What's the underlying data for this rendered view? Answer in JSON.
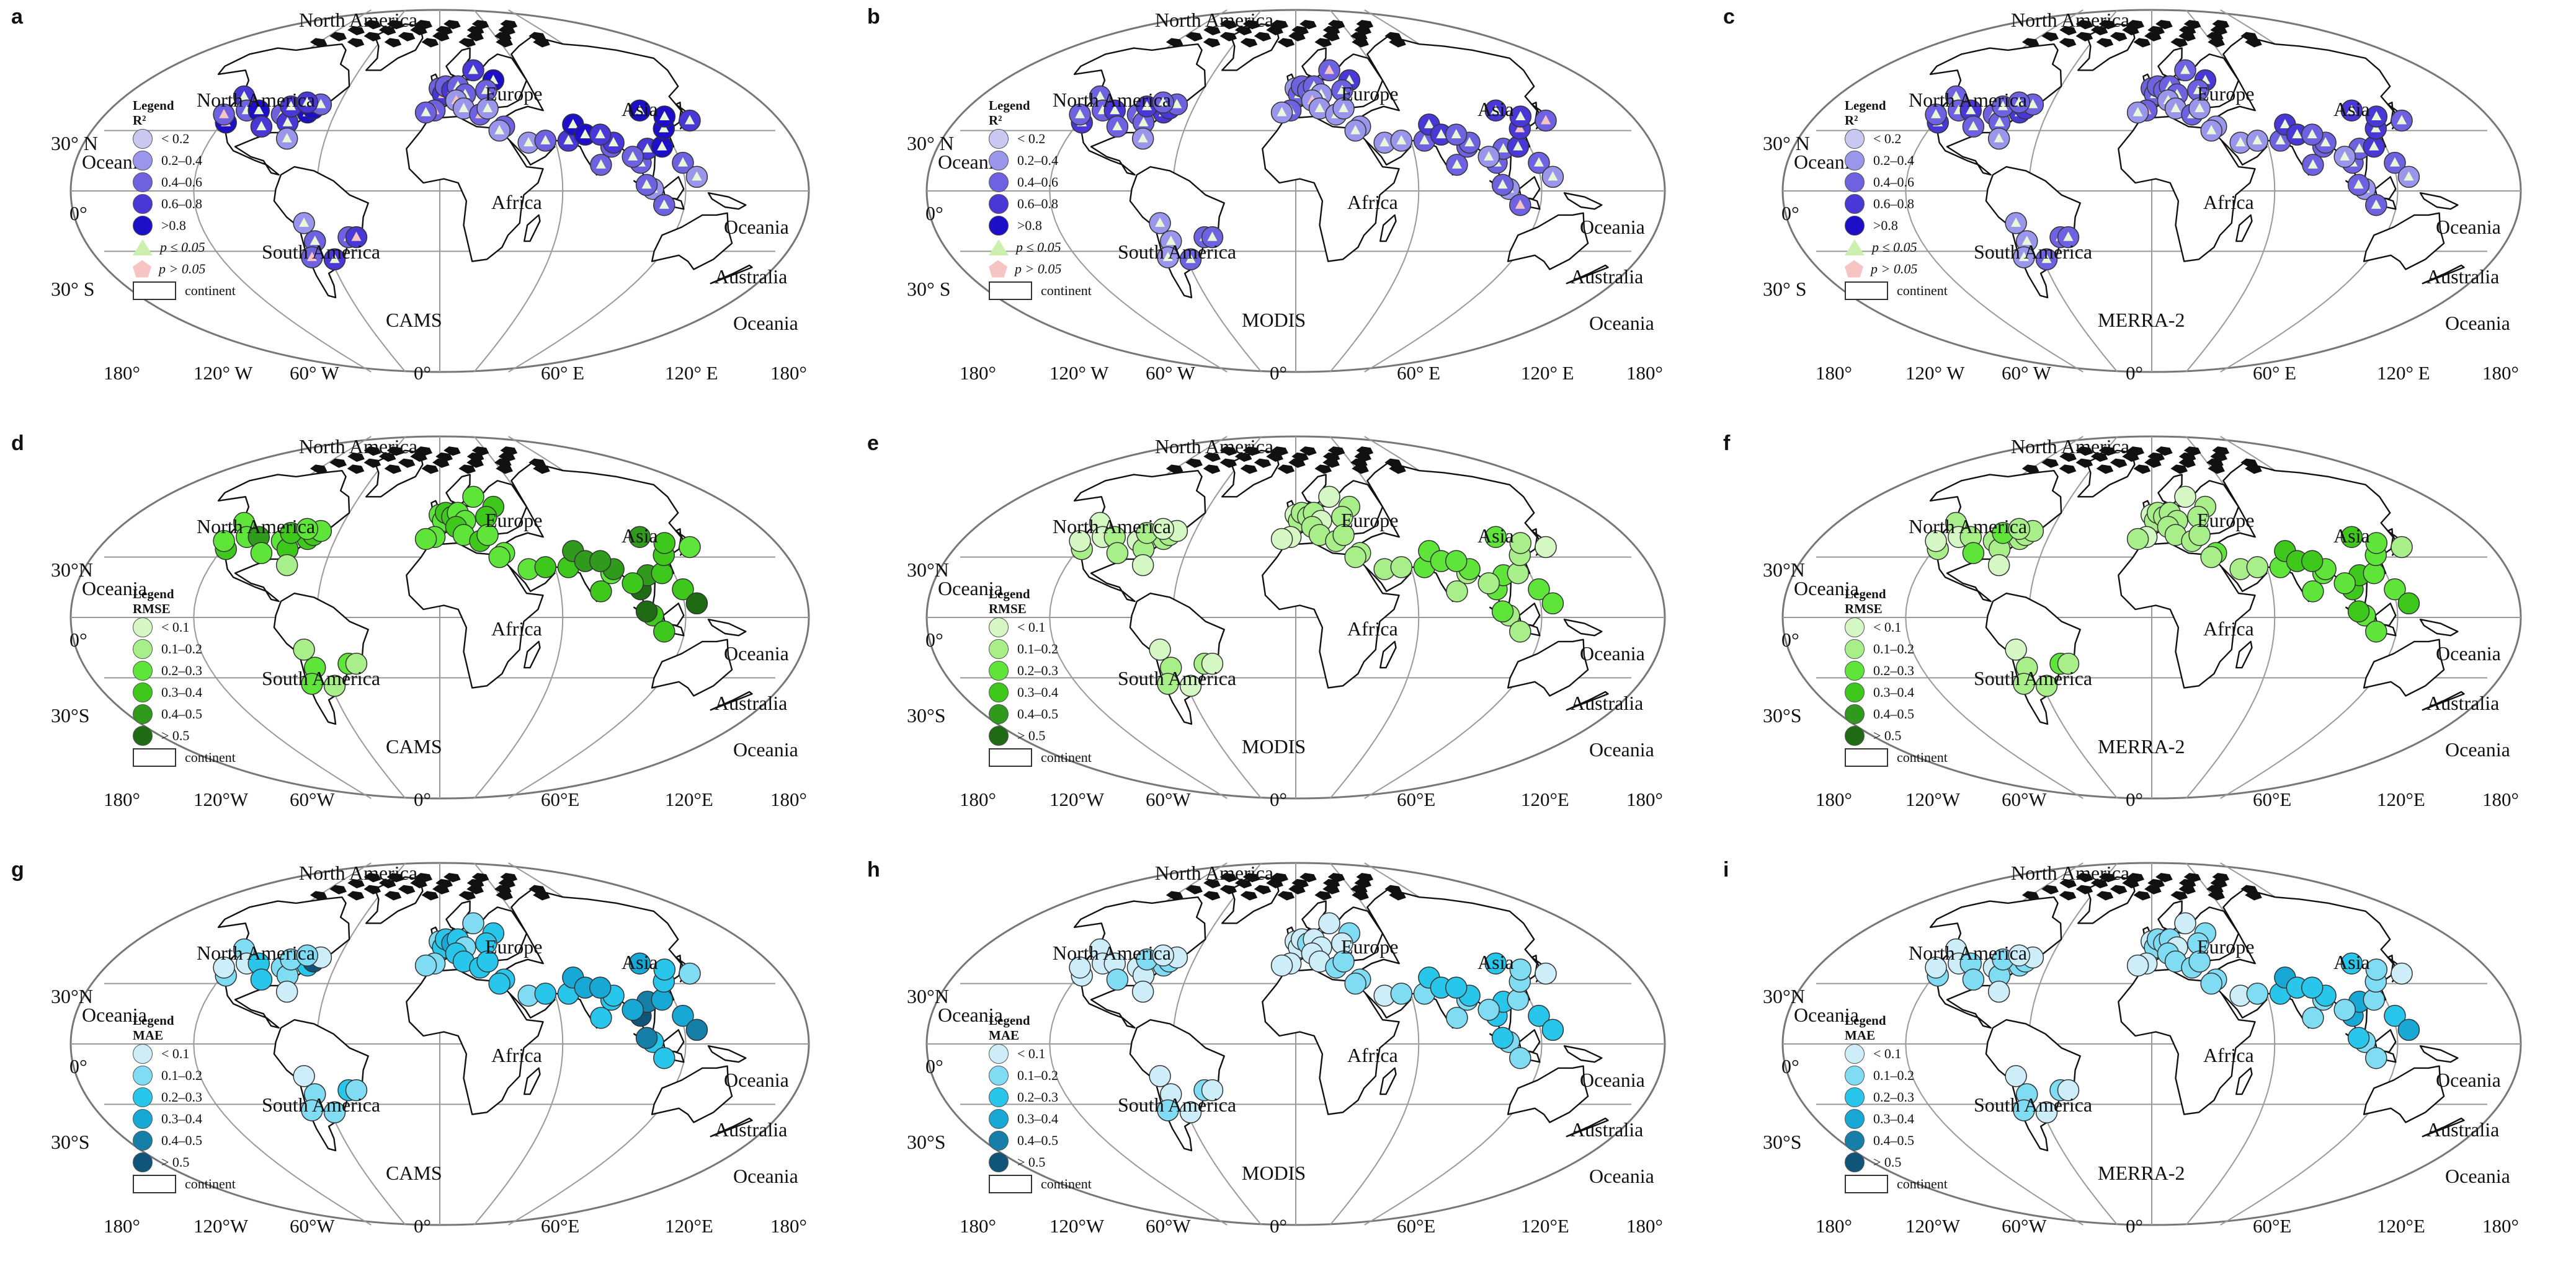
{
  "panels": [
    {
      "letter": "a",
      "source": "CAMS",
      "legend": "Legend",
      "metric": "R²",
      "ramp": "blue",
      "items": [
        "< 0.2",
        "0.2–0.4",
        "0.4–0.6",
        "0.6–0.8",
        ">0.8"
      ],
      "pvals": [
        "p ≤ 0.05",
        "p > 0.05"
      ],
      "continent": "continent",
      "lat": [
        "30° N",
        "0°",
        "30° S"
      ],
      "lon": [
        "180°",
        "120° W",
        "60° W",
        "0°",
        "60° E",
        "120° E",
        "180°"
      ]
    },
    {
      "letter": "b",
      "source": "MODIS",
      "legend": "Legend",
      "metric": "R²",
      "ramp": "blue",
      "items": [
        "< 0.2",
        "0.2–0.4",
        "0.4–0.6",
        "0.6–0.8",
        ">0.8"
      ],
      "pvals": [
        "p ≤ 0.05",
        "p > 0.05"
      ],
      "continent": "continent",
      "lat": [
        "30° N",
        "0°",
        "30° S"
      ],
      "lon": [
        "180°",
        "120° W",
        "60° W",
        "0°",
        "60° E",
        "120° E",
        "180°"
      ]
    },
    {
      "letter": "c",
      "source": "MERRA-2",
      "legend": "Legend",
      "metric": "R²",
      "ramp": "blue",
      "items": [
        "< 0.2",
        "0.2–0.4",
        "0.4–0.6",
        "0.6–0.8",
        ">0.8"
      ],
      "pvals": [
        "p ≤ 0.05",
        "p > 0.05"
      ],
      "continent": "continent",
      "lat": [
        "30° N",
        "0°",
        "30° S"
      ],
      "lon": [
        "180°",
        "120° W",
        "60° W",
        "0°",
        "60° E",
        "120° E",
        "180°"
      ]
    },
    {
      "letter": "d",
      "source": "CAMS",
      "legend": "Legend",
      "metric": "RMSE",
      "ramp": "green",
      "items": [
        "< 0.1",
        "0.1–0.2",
        "0.2–0.3",
        "0.3–0.4",
        "0.4–0.5",
        "> 0.5"
      ],
      "pvals": [],
      "continent": "continent",
      "lat": [
        "30°N",
        "0°",
        "30°S"
      ],
      "lon": [
        "180°",
        "120°W",
        "60°W",
        "0°",
        "60°E",
        "120°E",
        "180°"
      ]
    },
    {
      "letter": "e",
      "source": "MODIS",
      "legend": "Legend",
      "metric": "RMSE",
      "ramp": "green",
      "items": [
        "< 0.1",
        "0.1–0.2",
        "0.2–0.3",
        "0.3–0.4",
        "0.4–0.5",
        "> 0.5"
      ],
      "pvals": [],
      "continent": "continent",
      "lat": [
        "30°N",
        "0°",
        "30°S"
      ],
      "lon": [
        "180°",
        "120°W",
        "60°W",
        "0°",
        "60°E",
        "120°E",
        "180°"
      ]
    },
    {
      "letter": "f",
      "source": "MERRA-2",
      "legend": "Legend",
      "metric": "RMSE",
      "ramp": "green",
      "items": [
        "< 0.1",
        "0.1–0.2",
        "0.2–0.3",
        "0.3–0.4",
        "0.4–0.5",
        "> 0.5"
      ],
      "pvals": [],
      "continent": "continent",
      "lat": [
        "30°N",
        "0°",
        "30°S"
      ],
      "lon": [
        "180°",
        "120°W",
        "60°W",
        "0°",
        "60°E",
        "120°E",
        "180°"
      ]
    },
    {
      "letter": "g",
      "source": "CAMS",
      "legend": "Legend",
      "metric": "MAE",
      "ramp": "cyan",
      "items": [
        "< 0.1",
        "0.1–0.2",
        "0.2–0.3",
        "0.3–0.4",
        "0.4–0.5",
        "> 0.5"
      ],
      "pvals": [],
      "continent": "continent",
      "lat": [
        "30°N",
        "0°",
        "30°S"
      ],
      "lon": [
        "180°",
        "120°W",
        "60°W",
        "0°",
        "60°E",
        "120°E",
        "180°"
      ]
    },
    {
      "letter": "h",
      "source": "MODIS",
      "legend": "Legend",
      "metric": "MAE",
      "ramp": "cyan",
      "items": [
        "< 0.1",
        "0.1–0.2",
        "0.2–0.3",
        "0.3–0.4",
        "0.4–0.5",
        "> 0.5"
      ],
      "pvals": [],
      "continent": "continent",
      "lat": [
        "30°N",
        "0°",
        "30°S"
      ],
      "lon": [
        "180°",
        "120°W",
        "60°W",
        "0°",
        "60°E",
        "120°E",
        "180°"
      ]
    },
    {
      "letter": "i",
      "source": "MERRA-2",
      "legend": "Legend",
      "metric": "MAE",
      "ramp": "cyan",
      "items": [
        "< 0.1",
        "0.1–0.2",
        "0.2–0.3",
        "0.3–0.4",
        "0.4–0.5",
        "> 0.5"
      ],
      "pvals": [],
      "continent": "continent",
      "lat": [
        "30°N",
        "0°",
        "30°S"
      ],
      "lon": [
        "180°",
        "120°W",
        "60°W",
        "0°",
        "60°E",
        "120°E",
        "180°"
      ]
    }
  ],
  "region_labels": {
    "north_america": "North America",
    "europe": "Europe",
    "asia": "Asia",
    "africa": "Africa",
    "south_america": "South America",
    "australia": "Australia",
    "oceania": "Oceania"
  },
  "colors": {
    "blue": [
      "#c9c8f0",
      "#9a96ec",
      "#6f62e0",
      "#4a38d6",
      "#1d0fc8"
    ],
    "green": [
      "#d4f7c4",
      "#a8ef8a",
      "#5fe53a",
      "#3ec81c",
      "#2f9a1c",
      "#1f6b14"
    ],
    "cyan": [
      "#cdeef9",
      "#7fdcf2",
      "#29c6ec",
      "#18a8d6",
      "#167fa8",
      "#0f557a"
    ],
    "p_sig": "#cdf0b0",
    "p_nonsig": "#f7c4c4"
  },
  "sites": [
    [
      -122,
      47
    ],
    [
      -118,
      34
    ],
    [
      -112,
      40
    ],
    [
      -105,
      40
    ],
    [
      -97,
      32
    ],
    [
      -90,
      38
    ],
    [
      -84,
      34
    ],
    [
      -80,
      26
    ],
    [
      -76,
      39
    ],
    [
      -74,
      41
    ],
    [
      -71,
      43
    ],
    [
      -88,
      42
    ],
    [
      -123,
      38
    ],
    [
      -80,
      44
    ],
    [
      -0.1,
      51
    ],
    [
      2,
      48
    ],
    [
      4,
      52
    ],
    [
      8,
      50
    ],
    [
      12,
      52
    ],
    [
      16,
      48
    ],
    [
      10,
      45
    ],
    [
      -3,
      40
    ],
    [
      -8,
      39
    ],
    [
      14,
      41
    ],
    [
      23,
      38
    ],
    [
      25,
      60
    ],
    [
      37,
      55
    ],
    [
      30,
      50
    ],
    [
      28,
      41
    ],
    [
      46,
      24
    ],
    [
      55,
      25
    ],
    [
      67,
      25
    ],
    [
      73,
      33
    ],
    [
      77,
      28
    ],
    [
      80,
      13
    ],
    [
      88,
      22
    ],
    [
      90,
      24
    ],
    [
      100,
      14
    ],
    [
      104,
      1
    ],
    [
      106,
      21
    ],
    [
      114,
      22
    ],
    [
      116,
      40
    ],
    [
      121,
      31
    ],
    [
      127,
      37
    ],
    [
      139,
      35
    ],
    [
      121,
      14
    ],
    [
      126,
      7
    ],
    [
      110,
      -7
    ],
    [
      101,
      3
    ],
    [
      97,
      17
    ],
    [
      85,
      28
    ],
    [
      35,
      32
    ],
    [
      32,
      30
    ],
    [
      -58,
      -34
    ],
    [
      -47,
      -23
    ],
    [
      -65,
      -25
    ],
    [
      -68,
      -16
    ],
    [
      -43,
      -23
    ],
    [
      -70,
      -33
    ]
  ],
  "site_classes": {
    "0": [
      3,
      4,
      2,
      4,
      3,
      2,
      3,
      1,
      4,
      4,
      2,
      3,
      2,
      3,
      2,
      3,
      2,
      3,
      2,
      2,
      1,
      2,
      2,
      1,
      2,
      3,
      4,
      2,
      1,
      1,
      2,
      3,
      4,
      4,
      2,
      2,
      3,
      2,
      1,
      3,
      4,
      4,
      4,
      4,
      3,
      2,
      1,
      2,
      2,
      2,
      3,
      2,
      1,
      3,
      2,
      2,
      1,
      3,
      2
    ],
    "1": [
      2,
      3,
      2,
      3,
      2,
      2,
      2,
      1,
      3,
      3,
      2,
      3,
      2,
      2,
      1,
      2,
      2,
      2,
      2,
      1,
      1,
      2,
      1,
      1,
      1,
      2,
      3,
      2,
      1,
      1,
      1,
      2,
      3,
      3,
      2,
      2,
      2,
      2,
      1,
      2,
      3,
      3,
      3,
      3,
      2,
      2,
      1,
      2,
      2,
      1,
      2,
      1,
      1,
      2,
      2,
      1,
      1,
      2,
      1
    ],
    "2": [
      2,
      3,
      2,
      3,
      2,
      2,
      2,
      1,
      3,
      3,
      2,
      2,
      2,
      2,
      2,
      2,
      2,
      2,
      2,
      2,
      1,
      2,
      1,
      1,
      2,
      2,
      3,
      2,
      1,
      1,
      1,
      2,
      3,
      3,
      2,
      2,
      2,
      2,
      1,
      2,
      3,
      3,
      3,
      3,
      2,
      2,
      1,
      2,
      2,
      1,
      2,
      1,
      1,
      2,
      2,
      1,
      1,
      2,
      1
    ],
    "3": [
      2,
      3,
      2,
      4,
      2,
      2,
      3,
      1,
      3,
      3,
      2,
      3,
      2,
      2,
      2,
      2,
      3,
      3,
      2,
      2,
      3,
      2,
      2,
      2,
      3,
      2,
      3,
      3,
      2,
      2,
      3,
      3,
      4,
      4,
      3,
      2,
      4,
      5,
      3,
      4,
      3,
      4,
      3,
      3,
      2,
      3,
      5,
      3,
      5,
      3,
      4,
      2,
      2,
      1,
      2,
      2,
      1,
      1,
      2
    ],
    "4": [
      0,
      1,
      0,
      1,
      1,
      0,
      1,
      0,
      1,
      1,
      0,
      1,
      0,
      0,
      0,
      1,
      1,
      1,
      1,
      0,
      1,
      0,
      0,
      1,
      1,
      0,
      1,
      1,
      1,
      1,
      1,
      2,
      2,
      2,
      1,
      1,
      2,
      2,
      1,
      2,
      1,
      2,
      1,
      1,
      0,
      2,
      2,
      1,
      2,
      1,
      2,
      1,
      1,
      0,
      1,
      1,
      0,
      0,
      1
    ],
    "5": [
      1,
      1,
      0,
      1,
      2,
      1,
      1,
      0,
      1,
      1,
      1,
      2,
      0,
      1,
      0,
      1,
      1,
      1,
      1,
      1,
      1,
      0,
      1,
      1,
      1,
      0,
      1,
      1,
      1,
      1,
      1,
      2,
      3,
      3,
      2,
      2,
      2,
      3,
      2,
      3,
      2,
      3,
      2,
      2,
      1,
      2,
      3,
      2,
      3,
      2,
      3,
      2,
      1,
      1,
      2,
      1,
      0,
      1,
      1
    ],
    "6": [
      1,
      1,
      0,
      2,
      2,
      1,
      1,
      0,
      2,
      5,
      0,
      1,
      0,
      1,
      1,
      2,
      2,
      3,
      2,
      1,
      2,
      1,
      1,
      2,
      2,
      1,
      2,
      2,
      2,
      1,
      2,
      2,
      3,
      3,
      2,
      2,
      2,
      5,
      2,
      4,
      3,
      3,
      2,
      2,
      1,
      3,
      4,
      2,
      4,
      3,
      3,
      2,
      2,
      1,
      2,
      1,
      0,
      1,
      1
    ],
    "7": [
      0,
      0,
      0,
      0,
      1,
      0,
      0,
      0,
      1,
      1,
      0,
      1,
      0,
      0,
      0,
      0,
      0,
      1,
      0,
      0,
      0,
      0,
      0,
      0,
      1,
      0,
      1,
      0,
      1,
      0,
      1,
      1,
      2,
      2,
      1,
      1,
      2,
      2,
      1,
      2,
      1,
      2,
      1,
      1,
      0,
      2,
      2,
      1,
      2,
      1,
      2,
      1,
      1,
      0,
      1,
      0,
      0,
      0,
      1
    ],
    "8": [
      0,
      1,
      0,
      1,
      1,
      0,
      1,
      0,
      1,
      1,
      0,
      1,
      0,
      0,
      0,
      1,
      1,
      1,
      1,
      0,
      1,
      0,
      0,
      1,
      1,
      0,
      1,
      1,
      1,
      0,
      1,
      2,
      3,
      2,
      1,
      1,
      2,
      3,
      1,
      3,
      1,
      2,
      1,
      1,
      0,
      2,
      3,
      1,
      2,
      1,
      2,
      1,
      1,
      0,
      1,
      1,
      0,
      0,
      1
    ]
  },
  "nonsig_sites": {
    "0": [
      1,
      12,
      14,
      15,
      17,
      20,
      21,
      24,
      57,
      58
    ],
    "1": [
      20,
      25,
      42,
      44,
      47
    ],
    "2": [
      14,
      16,
      21
    ]
  }
}
